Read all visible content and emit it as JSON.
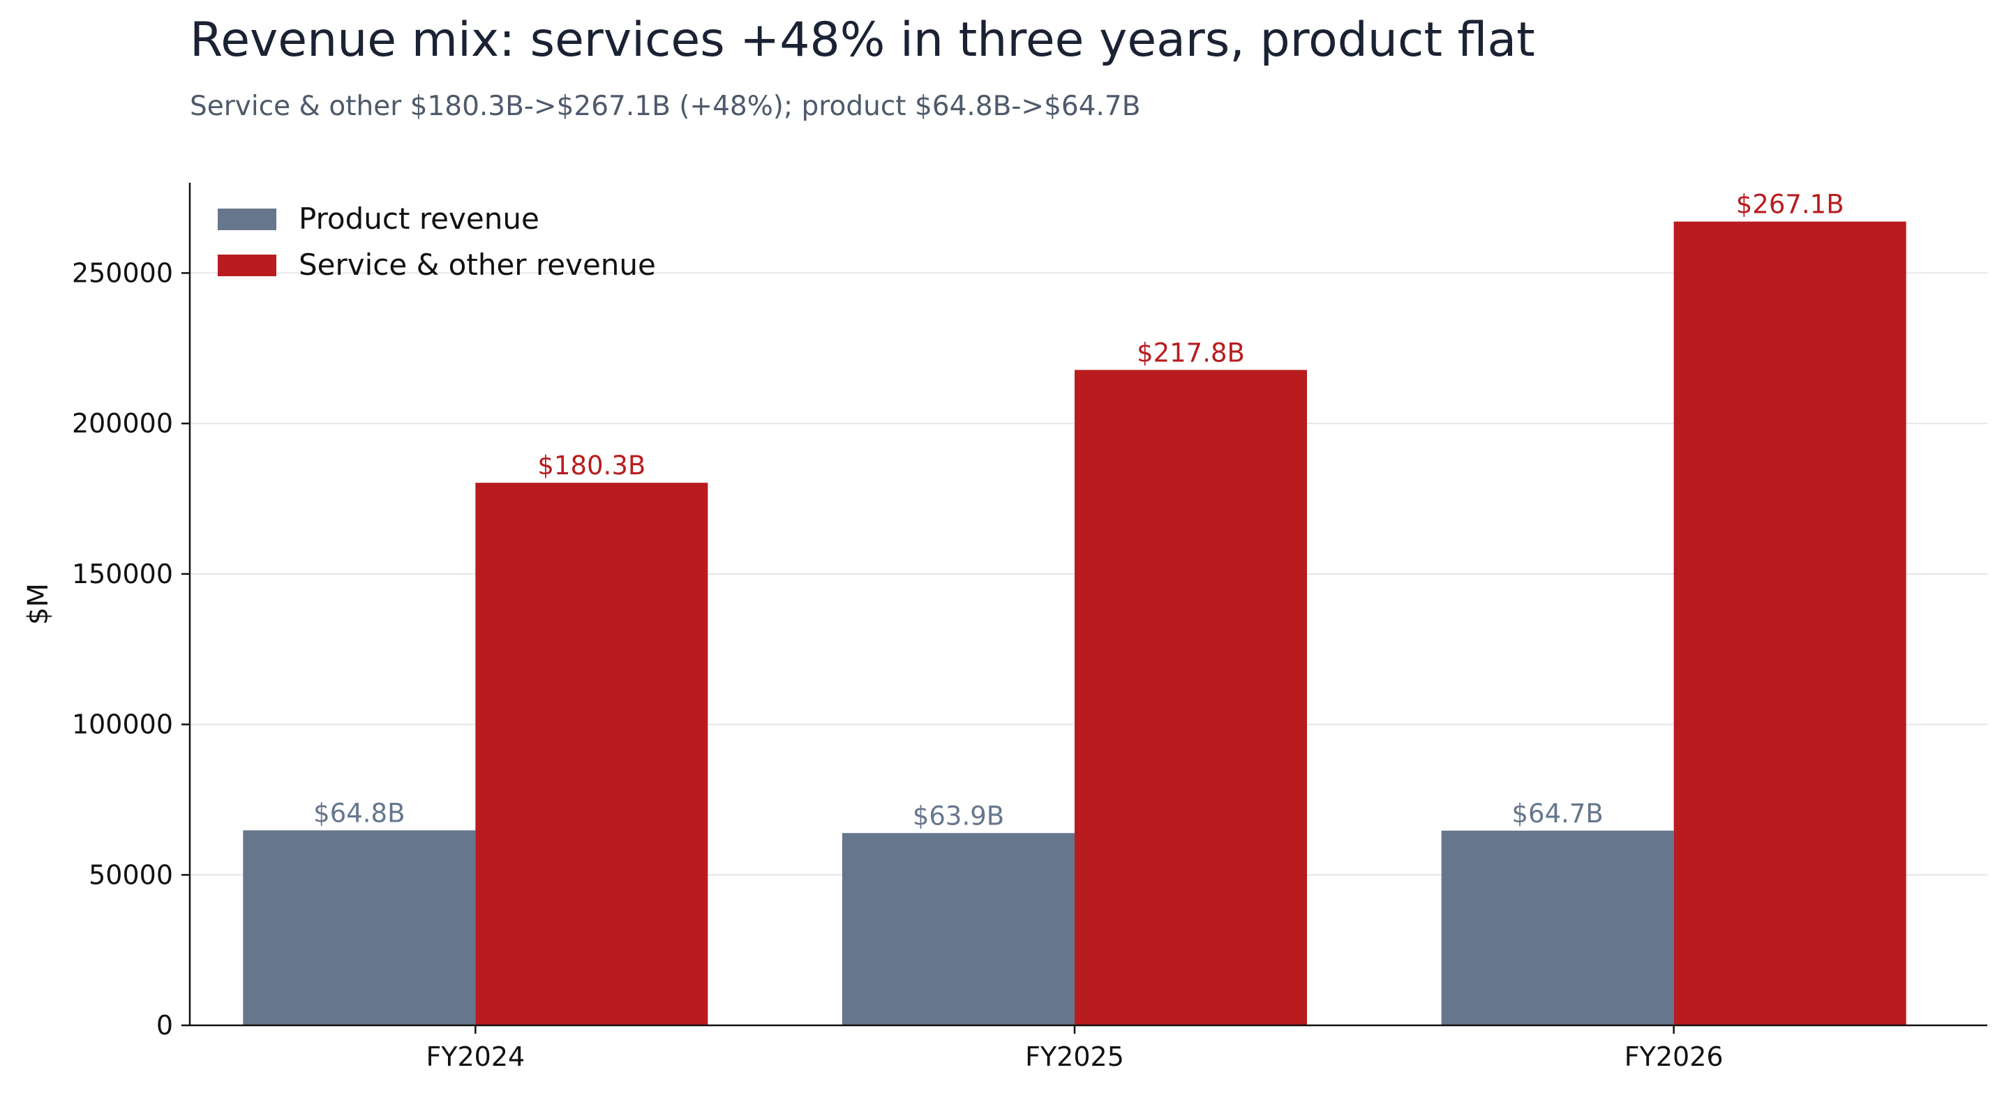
{
  "chart_data": {
    "type": "bar",
    "title": "Revenue mix: services +48% in three years, product flat",
    "subtitle": "Service & other $180.3B->$267.1B (+48%); product $64.8B->$64.7B",
    "categories": [
      "FY2024",
      "FY2025",
      "FY2026"
    ],
    "series": [
      {
        "name": "Product revenue",
        "values": [
          64800,
          63900,
          64700
        ],
        "labels": [
          "$64.8B",
          "$63.9B",
          "$64.7B"
        ],
        "color": "#66768c",
        "label_color": "#66768c"
      },
      {
        "name": "Service & other revenue",
        "values": [
          180300,
          217800,
          267100
        ],
        "labels": [
          "$180.3B",
          "$217.8B",
          "$267.1B"
        ],
        "color": "#b81c1f",
        "label_color": "#b81c1f"
      }
    ],
    "xlabel": "",
    "ylabel": "$M",
    "ylim": [
      0,
      280000
    ],
    "yticks": [
      0,
      50000,
      100000,
      150000,
      200000,
      250000
    ],
    "grid": "horizontal",
    "legend_position": "top-left"
  }
}
